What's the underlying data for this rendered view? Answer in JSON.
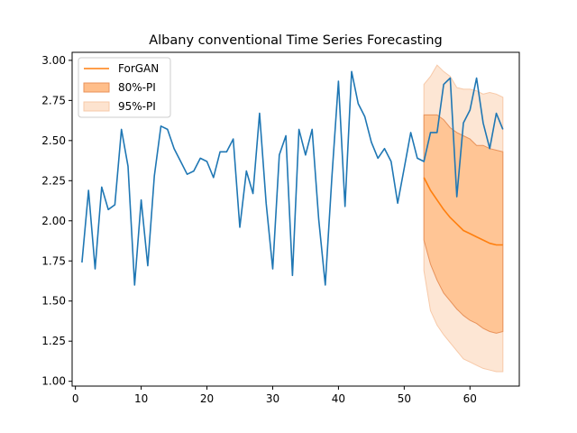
{
  "chart_data": {
    "type": "line",
    "title": "Albany conventional Time Series Forecasting",
    "xlabel": "",
    "ylabel": "",
    "xlim": [
      -0.5,
      67.5
    ],
    "ylim": [
      0.97,
      3.05
    ],
    "x_ticks": [
      0,
      10,
      20,
      30,
      40,
      50,
      60
    ],
    "y_ticks": [
      1.0,
      1.25,
      1.5,
      1.75,
      2.0,
      2.25,
      2.5,
      2.75,
      3.0
    ],
    "y_tick_labels": [
      "1.00",
      "1.25",
      "1.50",
      "1.75",
      "2.00",
      "2.25",
      "2.50",
      "2.75",
      "3.00"
    ],
    "x_tick_labels": [
      "0",
      "10",
      "20",
      "30",
      "40",
      "50",
      "60"
    ],
    "legend": {
      "placement": "top-left",
      "entries": [
        {
          "label": "ForGAN",
          "kind": "line"
        },
        {
          "label": "80%-PI",
          "kind": "band80"
        },
        {
          "label": "95%-PI",
          "kind": "band95"
        }
      ]
    },
    "colors": {
      "actual": "#1f77b4",
      "forecast": "#ff7f0e",
      "band80_fill": "#ffbe8a",
      "band80_edge": "#e8925a",
      "band95_fill": "#fde3cf",
      "band95_edge": "#f7c9a8"
    },
    "series": [
      {
        "name": "actual",
        "x": [
          1,
          2,
          3,
          4,
          5,
          6,
          7,
          8,
          9,
          10,
          11,
          12,
          13,
          14,
          15,
          16,
          17,
          18,
          19,
          20,
          21,
          22,
          23,
          24,
          25,
          26,
          27,
          28,
          29,
          30,
          31,
          32,
          33,
          34,
          35,
          36,
          37,
          38,
          39,
          40,
          41,
          42,
          43,
          44,
          45,
          46,
          47,
          48,
          49,
          50,
          51,
          52,
          53,
          54,
          55,
          56,
          57,
          58,
          59,
          60,
          61,
          62,
          63,
          64,
          65
        ],
        "values": [
          1.74,
          2.19,
          1.7,
          2.21,
          2.07,
          2.1,
          2.57,
          2.34,
          1.6,
          2.13,
          1.72,
          2.28,
          2.59,
          2.57,
          2.45,
          2.37,
          2.29,
          2.31,
          2.39,
          2.37,
          2.27,
          2.43,
          2.43,
          2.51,
          1.96,
          2.31,
          2.17,
          2.67,
          2.11,
          1.7,
          2.41,
          2.53,
          1.66,
          2.57,
          2.41,
          2.57,
          2.01,
          1.6,
          2.27,
          2.87,
          2.09,
          2.93,
          2.73,
          2.65,
          2.49,
          2.39,
          2.45,
          2.37,
          2.11,
          2.33,
          2.55,
          2.39,
          2.37,
          2.55,
          2.55,
          2.85,
          2.89,
          2.15,
          2.61,
          2.69,
          2.89,
          2.61,
          2.45,
          2.67,
          2.57
        ]
      },
      {
        "name": "ForGAN",
        "x": [
          53,
          54,
          55,
          56,
          57,
          58,
          59,
          60,
          61,
          62,
          63,
          64,
          65
        ],
        "values": [
          2.27,
          2.19,
          2.13,
          2.07,
          2.02,
          1.98,
          1.94,
          1.92,
          1.9,
          1.88,
          1.86,
          1.85,
          1.85
        ]
      }
    ],
    "bands": [
      {
        "name": "95%-PI",
        "x": [
          53,
          54,
          55,
          56,
          57,
          58,
          59,
          60,
          61,
          62,
          63,
          64,
          65
        ],
        "upper": [
          2.85,
          2.9,
          2.97,
          2.93,
          2.9,
          2.83,
          2.82,
          2.82,
          2.81,
          2.79,
          2.8,
          2.79,
          2.77
        ],
        "lower": [
          1.69,
          1.44,
          1.35,
          1.29,
          1.24,
          1.19,
          1.14,
          1.12,
          1.1,
          1.08,
          1.07,
          1.06,
          1.06
        ]
      },
      {
        "name": "80%-PI",
        "x": [
          53,
          54,
          55,
          56,
          57,
          58,
          59,
          60,
          61,
          62,
          63,
          64,
          65
        ],
        "upper": [
          2.66,
          2.66,
          2.66,
          2.63,
          2.58,
          2.55,
          2.53,
          2.51,
          2.47,
          2.47,
          2.45,
          2.44,
          2.43
        ],
        "lower": [
          1.88,
          1.73,
          1.63,
          1.55,
          1.5,
          1.45,
          1.41,
          1.38,
          1.36,
          1.33,
          1.31,
          1.3,
          1.31
        ]
      }
    ]
  }
}
